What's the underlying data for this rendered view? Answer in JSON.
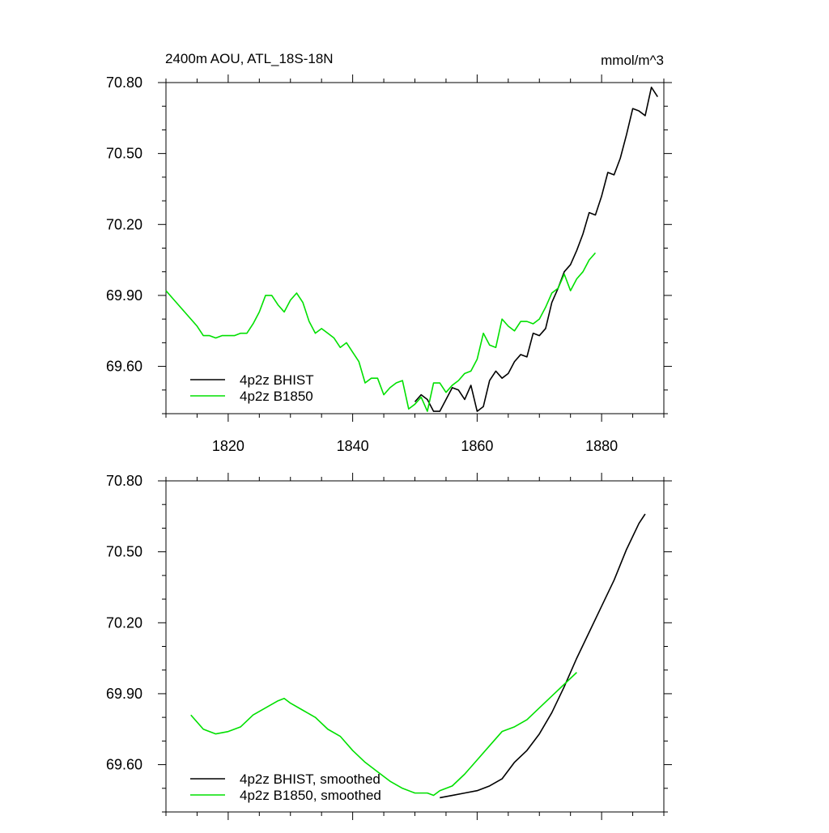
{
  "chart_data": [
    {
      "type": "line",
      "title": "2400m AOU, ATL_18S-18N",
      "units": "mmol/m^3",
      "xlim": [
        1810,
        1890
      ],
      "ylim": [
        69.4,
        70.8
      ],
      "xticks": [
        1820,
        1840,
        1860,
        1880
      ],
      "yticks": [
        {
          "value": 69.6,
          "label": "69.60"
        },
        {
          "value": 69.9,
          "label": "69.90"
        },
        {
          "value": 70.2,
          "label": "70.20"
        },
        {
          "value": 70.5,
          "label": "70.50"
        },
        {
          "value": 70.8,
          "label": "70.80"
        }
      ],
      "series": [
        {
          "name": "4p2z BHIST",
          "color": "#000000",
          "x": [
            1850,
            1851,
            1852,
            1853,
            1854,
            1855,
            1856,
            1857,
            1858,
            1859,
            1860,
            1861,
            1862,
            1863,
            1864,
            1865,
            1866,
            1867,
            1868,
            1869,
            1870,
            1871,
            1872,
            1873,
            1874,
            1875,
            1876,
            1877,
            1878,
            1879,
            1880,
            1881,
            1882,
            1883,
            1884,
            1885,
            1886,
            1887,
            1888,
            1889
          ],
          "values": [
            69.45,
            69.48,
            69.46,
            69.41,
            69.41,
            69.46,
            69.51,
            69.5,
            69.46,
            69.52,
            69.41,
            69.43,
            69.54,
            69.58,
            69.55,
            69.57,
            69.62,
            69.65,
            69.64,
            69.74,
            69.73,
            69.76,
            69.87,
            69.93,
            70.0,
            70.03,
            70.09,
            70.16,
            70.25,
            70.24,
            70.32,
            70.42,
            70.41,
            70.48,
            70.58,
            70.69,
            70.68,
            70.66,
            70.78,
            70.74
          ]
        },
        {
          "name": "4p2z B1850",
          "color": "#00e000",
          "x": [
            1810,
            1811,
            1812,
            1813,
            1814,
            1815,
            1816,
            1817,
            1818,
            1819,
            1820,
            1821,
            1822,
            1823,
            1824,
            1825,
            1826,
            1827,
            1828,
            1829,
            1830,
            1831,
            1832,
            1833,
            1834,
            1835,
            1836,
            1837,
            1838,
            1839,
            1840,
            1841,
            1842,
            1843,
            1844,
            1845,
            1846,
            1847,
            1848,
            1849,
            1850,
            1851,
            1852,
            1853,
            1854,
            1855,
            1856,
            1857,
            1858,
            1859,
            1860,
            1861,
            1862,
            1863,
            1864,
            1865,
            1866,
            1867,
            1868,
            1869,
            1870,
            1871,
            1872,
            1873,
            1874,
            1875,
            1876,
            1877,
            1878,
            1879
          ],
          "values": [
            69.92,
            69.89,
            69.86,
            69.83,
            69.8,
            69.77,
            69.73,
            69.73,
            69.72,
            69.73,
            69.73,
            69.73,
            69.74,
            69.74,
            69.78,
            69.83,
            69.9,
            69.9,
            69.86,
            69.83,
            69.88,
            69.91,
            69.87,
            69.79,
            69.74,
            69.76,
            69.74,
            69.72,
            69.68,
            69.7,
            69.66,
            69.62,
            69.53,
            69.55,
            69.55,
            69.48,
            69.51,
            69.53,
            69.54,
            69.42,
            69.44,
            69.47,
            69.41,
            69.53,
            69.53,
            69.49,
            69.52,
            69.54,
            69.57,
            69.58,
            69.63,
            69.74,
            69.69,
            69.68,
            69.8,
            69.77,
            69.75,
            69.79,
            69.79,
            69.78,
            69.8,
            69.85,
            69.91,
            69.93,
            69.99,
            69.92,
            69.97,
            70.0,
            70.05,
            70.08
          ]
        }
      ]
    },
    {
      "type": "line",
      "xlim": [
        1810,
        1890
      ],
      "ylim": [
        69.4,
        70.8
      ],
      "yticks": [
        {
          "value": 69.6,
          "label": "69.60"
        },
        {
          "value": 69.9,
          "label": "69.90"
        },
        {
          "value": 70.2,
          "label": "70.20"
        },
        {
          "value": 70.5,
          "label": "70.50"
        },
        {
          "value": 70.8,
          "label": "70.80"
        }
      ],
      "series": [
        {
          "name": "4p2z BHIST, smoothed",
          "color": "#000000",
          "x": [
            1854,
            1856,
            1858,
            1860,
            1862,
            1864,
            1866,
            1868,
            1870,
            1872,
            1874,
            1876,
            1878,
            1880,
            1882,
            1884,
            1886,
            1887
          ],
          "values": [
            69.46,
            69.47,
            69.48,
            69.49,
            69.51,
            69.54,
            69.61,
            69.66,
            69.73,
            69.82,
            69.93,
            70.05,
            70.16,
            70.27,
            70.38,
            70.51,
            70.62,
            70.66
          ]
        },
        {
          "name": "4p2z B1850, smoothed",
          "color": "#00e000",
          "x": [
            1814,
            1816,
            1818,
            1820,
            1822,
            1824,
            1826,
            1828,
            1829,
            1830,
            1832,
            1834,
            1836,
            1838,
            1840,
            1842,
            1844,
            1846,
            1848,
            1850,
            1852,
            1853,
            1854,
            1856,
            1858,
            1860,
            1862,
            1864,
            1866,
            1868,
            1870,
            1872,
            1874,
            1876
          ],
          "values": [
            69.81,
            69.75,
            69.73,
            69.74,
            69.76,
            69.81,
            69.84,
            69.87,
            69.88,
            69.86,
            69.83,
            69.8,
            69.75,
            69.72,
            69.66,
            69.61,
            69.57,
            69.53,
            69.5,
            69.48,
            69.48,
            69.47,
            69.49,
            69.51,
            69.56,
            69.62,
            69.68,
            69.74,
            69.76,
            69.79,
            69.84,
            69.89,
            69.94,
            69.99
          ]
        }
      ]
    }
  ]
}
